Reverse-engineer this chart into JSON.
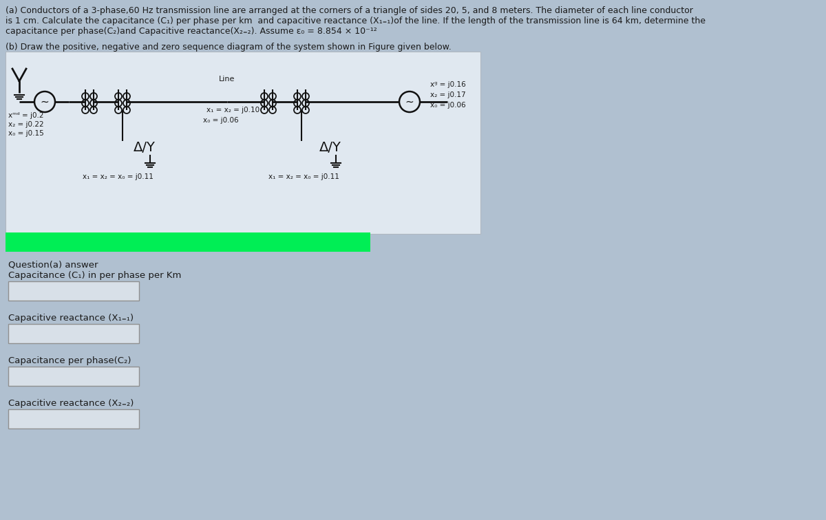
{
  "bg_color": "#b0c0d0",
  "panel_color": "#dce4ec",
  "text_color": "#1a1a1a",
  "dark_color": "#111111",
  "green_bar_color": "#00ee55",
  "input_box_color": "#d8e0e8",
  "input_box_border": "#888888",
  "line_a1": "(a) Conductors of a 3-phase,60 Hz transmission line are arranged at the corners of a triangle of sides 20, 5, and 8 meters. The diameter of each line conductor",
  "line_a2": "is 1 cm. Calculate the capacitance (C₁) per phase per km  and capacitive reactance (X₁₌₁)of the line. If the length of the transmission line is 64 km, determine the",
  "line_a3": "capacitance per phase(C₂)and Capacitive reactance(X₂₌₂). Assume ε₀ = 8.854 × 10⁻¹²",
  "line_b": "(b) Draw the positive, negative and zero sequence diagram of the system shown in Figure given below.",
  "qa_label": "Question(a) answer",
  "f1_label": "Capacitance (C₁) in per phase per Km",
  "f2_label": "Capacitive reactance (X₁₌₁)",
  "f3_label": "Capacitance per phase(C₂)",
  "f4_label": "Capacitive reactance (X₂₌₂)",
  "label_xd_left": "xᵐᵈ = j0.2",
  "label_x2_left": "x₂ = j0.22",
  "label_x0_left": "x₀ = j0.15",
  "label_line": "Line",
  "label_x1x2_line": "x₁ = x₂ = j0.10",
  "label_x0_mid": "x₀ = j0.06",
  "label_xd_right": "xᵍ = j0.16",
  "label_x2_right": "x₂ = j0.17",
  "label_x0_right": "x₀ = j0.06",
  "label_T1_bot": "x₁ = x₂ = x₀ = j0.11",
  "label_T2_bot": "x₁ = x₂ = x₀ = j0.11"
}
